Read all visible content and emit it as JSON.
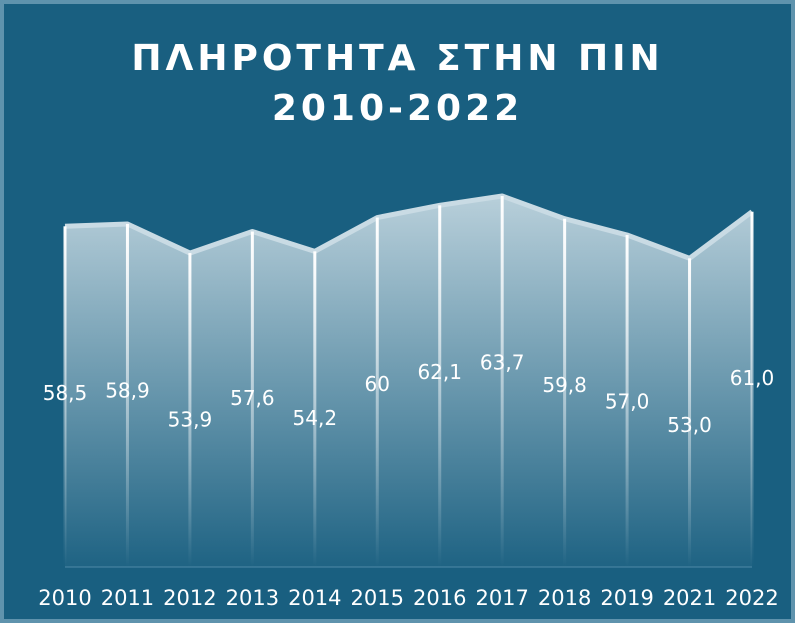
{
  "chart_data": {
    "type": "area",
    "title": "ΠΛΗΡΟΤΗΤΑ ΣΤΗΝ ΠΙΝ 2010-2022",
    "categories": [
      "2010",
      "2011",
      "2012",
      "2013",
      "2014",
      "2015",
      "2016",
      "2017",
      "2018",
      "2019",
      "2021",
      "2022"
    ],
    "values": [
      58.5,
      58.9,
      53.9,
      57.6,
      54.2,
      60,
      62.1,
      63.7,
      59.8,
      57.0,
      53.0,
      61.0
    ],
    "value_labels": [
      "58,5",
      "58,9",
      "53,9",
      "57,6",
      "54,2",
      "60",
      "62,1",
      "63,7",
      "59,8",
      "57,0",
      "53,0",
      "61,0"
    ],
    "color": "#c9dbe4"
  }
}
